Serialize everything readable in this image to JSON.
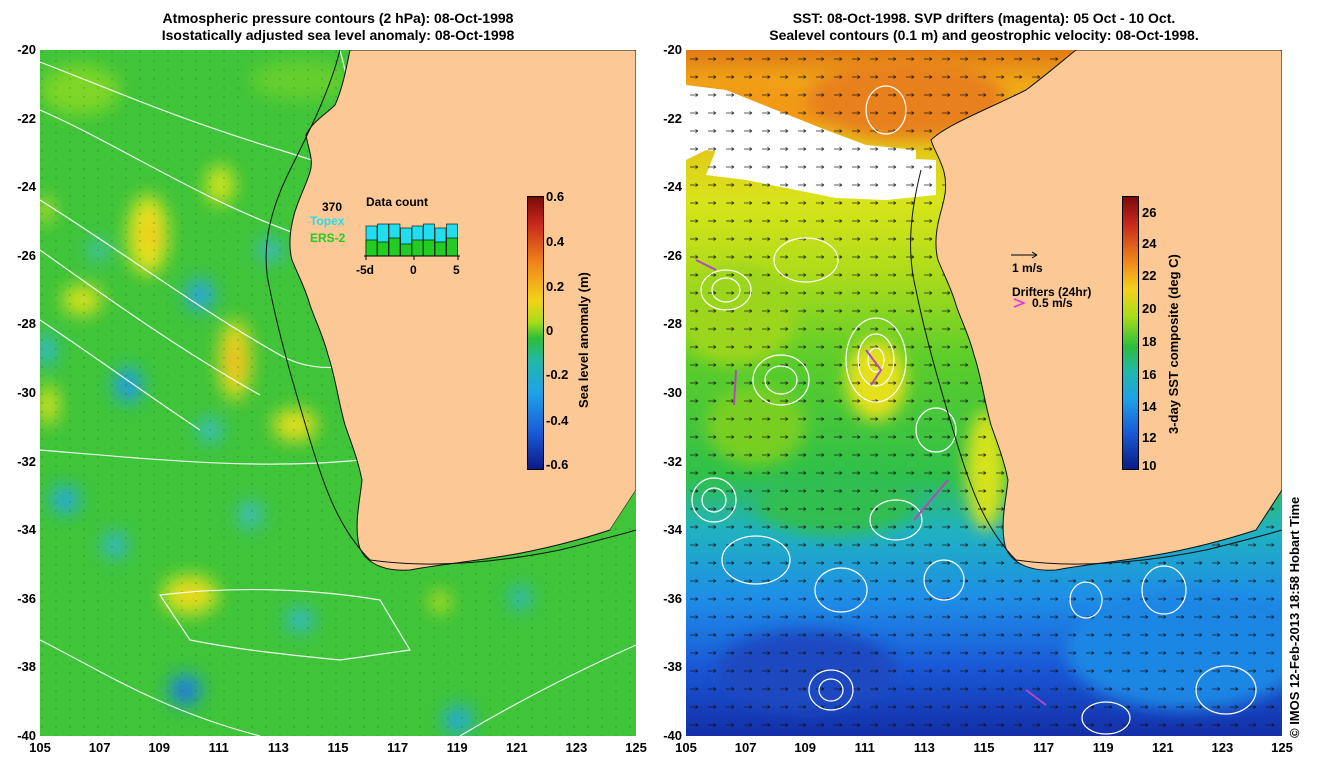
{
  "left_panel": {
    "title_line1": "Atmospheric pressure contours (2 hPa): 08-Oct-1998",
    "title_line2": "Isostatically adjusted sea level anomaly: 08-Oct-1998",
    "colorbar": {
      "label": "Sea level anomaly (m)",
      "ticks": [
        "0.6",
        "0.4",
        "0.2",
        "0",
        "-0.2",
        "-0.4",
        "-0.6"
      ]
    },
    "data_count": {
      "total": "370",
      "topex_label": "Topex",
      "ers_label": "ERS-2",
      "title": "Data count",
      "x_ticks": [
        "-5d",
        "0",
        "5"
      ],
      "topex_color": "#22ddee",
      "ers_color": "#22cc22"
    }
  },
  "right_panel": {
    "title_line1": "SST: 08-Oct-1998. SVP drifters (magenta): 05 Oct - 10 Oct.",
    "title_line2": "Sealevel contours (0.1 m) and geostrophic velocity: 08-Oct-1998.",
    "colorbar": {
      "label": "3-day SST composite (deg C)",
      "ticks": [
        "26",
        "24",
        "22",
        "20",
        "18",
        "16",
        "14",
        "12",
        "10"
      ]
    },
    "velocity_legend": "1 m/s",
    "drifter_legend_title": "Drifters (24hr)",
    "drifter_legend_speed": "0.5 m/s",
    "drifter_color": "#dd33dd"
  },
  "axes": {
    "y_ticks": [
      "-20",
      "-22",
      "-24",
      "-26",
      "-28",
      "-30",
      "-32",
      "-34",
      "-36",
      "-38",
      "-40"
    ],
    "x_ticks": [
      "105",
      "107",
      "109",
      "111",
      "113",
      "115",
      "117",
      "119",
      "121",
      "123",
      "125"
    ]
  },
  "land_color": "#fbc896",
  "credit": "© IMOS 12-Feb-2013 18:58 Hobart Time"
}
